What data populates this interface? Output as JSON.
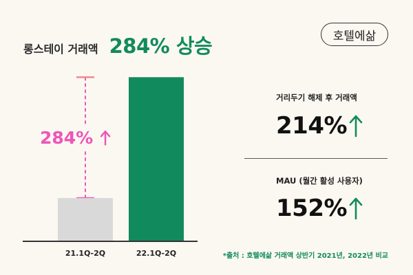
{
  "header": {
    "subtitle": "롱스테이 거래액",
    "headline": "284% 상승"
  },
  "logo": {
    "text": "호텔에삶"
  },
  "chart_data": {
    "type": "bar",
    "categories": [
      "21.1Q-2Q",
      "22.1Q-2Q"
    ],
    "values": [
      1,
      3.84
    ],
    "ylim": [
      0,
      4.2
    ],
    "annotation": {
      "text": "284%",
      "from_category": 0,
      "to_value": 3.84
    },
    "colors": {
      "bars": [
        "#d9d9d9",
        "#118a5d"
      ],
      "annotation": "#ee55b8",
      "guide": "#f08a8a"
    },
    "grid": false,
    "legend": "none"
  },
  "stats": [
    {
      "label": "거리두기 해제 후 거래액",
      "value": "214%"
    },
    {
      "label": "MAU (월간 활성 사용자)",
      "value": "152%"
    }
  ],
  "source": "*출처 : 호텔에삶 거래액 상반기 2021년, 2022년 비교",
  "colors": {
    "accent": "#128a5c",
    "background": "#fbf8f2"
  }
}
